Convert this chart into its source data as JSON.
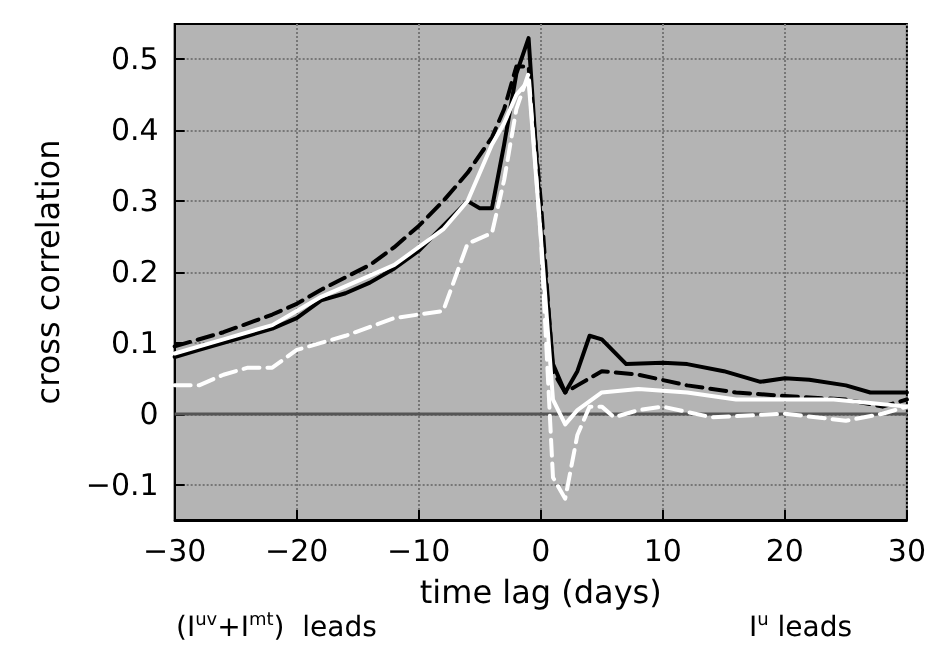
{
  "chart_data": {
    "type": "line",
    "xlabel": "time lag (days)",
    "ylabel": "cross correlation",
    "xlim": [
      -30,
      30
    ],
    "xticks": [
      {
        "value": -30,
        "label": "−30"
      },
      {
        "value": -20,
        "label": "−20"
      },
      {
        "value": -10,
        "label": "−10"
      },
      0,
      10,
      20,
      30
    ],
    "ylim": [
      -0.15,
      0.55
    ],
    "yticks": [
      {
        "value": -0.1,
        "label": "−0.1"
      },
      0,
      0.1,
      0.2,
      0.3,
      0.4,
      0.5
    ],
    "grid": true,
    "marker": "none",
    "ref_lines": [
      {
        "axis": "y",
        "value": 0,
        "color": "#555555",
        "line_style": "solid"
      }
    ],
    "annotations": [
      "(I$^{uv}$+I$^{mt}$)  leads",
      "I$^{u}$ leads"
    ],
    "series": [
      {
        "color": "#000000",
        "line_style": "solid",
        "x": [
          -30,
          -28,
          -26,
          -24,
          -22,
          -20,
          -18,
          -16,
          -14,
          -12,
          -10,
          -8,
          -6,
          -5,
          -4,
          -3,
          -2,
          -1,
          0,
          1,
          2,
          3,
          4,
          5,
          7,
          10,
          12,
          15,
          18,
          20,
          22,
          25,
          27,
          30
        ],
        "values": [
          0.08,
          0.09,
          0.1,
          0.11,
          0.12,
          0.135,
          0.16,
          0.17,
          0.185,
          0.205,
          0.23,
          0.265,
          0.3,
          0.29,
          0.29,
          0.38,
          0.48,
          0.53,
          0.27,
          0.07,
          0.03,
          0.06,
          0.11,
          0.105,
          0.07,
          0.072,
          0.07,
          0.06,
          0.045,
          0.05,
          0.048,
          0.04,
          0.03,
          0.03
        ]
      },
      {
        "color": "#000000",
        "line_style": "dashed",
        "x": [
          -30,
          -26,
          -22,
          -20,
          -18,
          -14,
          -12,
          -10,
          -8,
          -6,
          -4,
          -3,
          -2,
          -1,
          0,
          1,
          2,
          3,
          5,
          8,
          12,
          16,
          20,
          25,
          28,
          30
        ],
        "values": [
          0.095,
          0.115,
          0.14,
          0.155,
          0.175,
          0.21,
          0.235,
          0.265,
          0.3,
          0.34,
          0.39,
          0.43,
          0.49,
          0.49,
          0.3,
          0.06,
          0.03,
          0.04,
          0.06,
          0.055,
          0.04,
          0.03,
          0.025,
          0.02,
          0.01,
          0.02
        ]
      },
      {
        "color": "#ffffff",
        "line_style": "solid",
        "x": [
          -30,
          -26,
          -22,
          -20,
          -18,
          -14,
          -12,
          -10,
          -8,
          -6,
          -4,
          -3,
          -2,
          -1,
          0,
          1,
          2,
          3,
          5,
          8,
          12,
          16,
          20,
          24,
          27,
          30
        ],
        "values": [
          0.085,
          0.105,
          0.125,
          0.145,
          0.165,
          0.195,
          0.21,
          0.235,
          0.26,
          0.3,
          0.38,
          0.41,
          0.45,
          0.47,
          0.25,
          0.02,
          -0.015,
          0.005,
          0.03,
          0.035,
          0.03,
          0.02,
          0.02,
          0.02,
          0.015,
          0.01
        ]
      },
      {
        "color": "#ffffff",
        "line_style": "dashed",
        "x": [
          -30,
          -28,
          -26,
          -24,
          -22,
          -20,
          -16,
          -12,
          -10,
          -8,
          -6,
          -4,
          -3,
          -2,
          -1,
          0,
          1,
          2,
          3,
          4,
          5,
          6,
          8,
          10,
          14,
          20,
          25,
          28,
          30
        ],
        "values": [
          0.04,
          0.04,
          0.055,
          0.065,
          0.065,
          0.09,
          0.11,
          0.135,
          0.14,
          0.145,
          0.24,
          0.255,
          0.33,
          0.43,
          0.48,
          0.25,
          -0.09,
          -0.12,
          -0.03,
          0.01,
          0.01,
          -0.005,
          0.005,
          0.01,
          -0.005,
          0,
          -0.01,
          0,
          0.01
        ]
      }
    ]
  }
}
